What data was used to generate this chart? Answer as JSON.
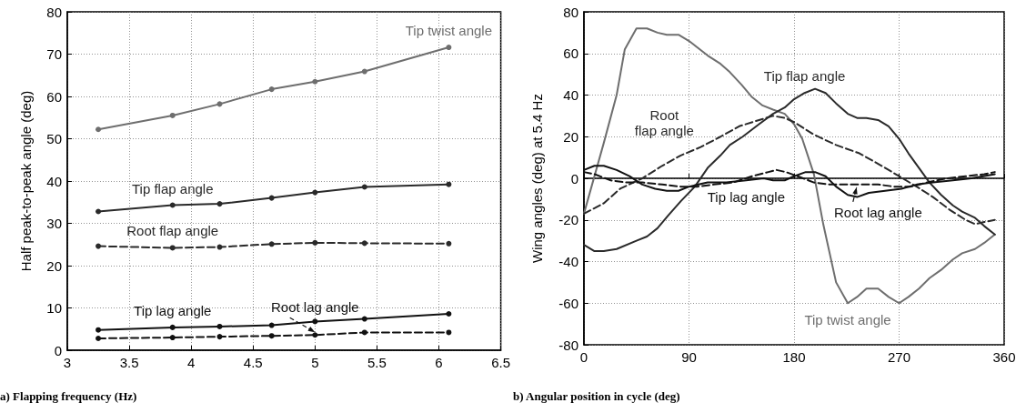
{
  "chart_data": [
    {
      "type": "line",
      "xlabel": "a) Flapping frequency (Hz)",
      "ylabel": "Half peak-to-peak angle (deg)",
      "xlim": [
        3,
        6.5
      ],
      "xticks": [
        3,
        3.5,
        4,
        4.5,
        5,
        5.5,
        6,
        6.5
      ],
      "ylim": [
        0,
        80
      ],
      "yticks": [
        0,
        10,
        20,
        30,
        40,
        50,
        60,
        70,
        80
      ],
      "grid": true,
      "marker": "circle",
      "x": [
        3.25,
        3.85,
        4.23,
        4.65,
        5.0,
        5.4,
        6.08
      ],
      "series": [
        {
          "name": "Tip twist angle",
          "color": "#6e6e6e",
          "line_style": "solid",
          "values": [
            52.2,
            55.5,
            58.2,
            61.7,
            63.5,
            65.9,
            71.6
          ]
        },
        {
          "name": "Tip flap angle",
          "color": "#2a2a2a",
          "line_style": "solid",
          "values": [
            32.8,
            34.3,
            34.6,
            36,
            37.3,
            38.6,
            39.2
          ]
        },
        {
          "name": "Root flap angle",
          "color": "#2a2a2a",
          "line_style": "dashed",
          "values": [
            24.6,
            24.2,
            24.4,
            25.1,
            25.4,
            25.3,
            25.2
          ]
        },
        {
          "name": "Tip lag angle",
          "color": "#111111",
          "line_style": "solid",
          "values": [
            4.8,
            5.4,
            5.6,
            5.9,
            6.8,
            7.4,
            8.6
          ]
        },
        {
          "name": "Root lag angle",
          "color": "#111111",
          "line_style": "dashed",
          "values": [
            2.8,
            3.0,
            3.2,
            3.4,
            3.6,
            4.2,
            4.2
          ]
        }
      ]
    },
    {
      "type": "line",
      "xlabel": "b) Angular position in cycle (deg)",
      "ylabel": "Wing angles (deg) at 5.4 Hz",
      "xlim": [
        0,
        360
      ],
      "xticks": [
        0,
        90,
        180,
        270,
        360
      ],
      "ylim": [
        -80,
        80
      ],
      "yticks": [
        -80,
        -60,
        -40,
        -20,
        0,
        20,
        40,
        60,
        80
      ],
      "grid": true,
      "marker": "none",
      "series": [
        {
          "name": "Tip twist angle",
          "color": "#6e6e6e",
          "line_style": "solid",
          "x": [
            0,
            17,
            28,
            35,
            45,
            54,
            63,
            71,
            81,
            90,
            106,
            117,
            125,
            135,
            144,
            153,
            162,
            172,
            180,
            187,
            197,
            205,
            216,
            226,
            234,
            242,
            252,
            261,
            270,
            278,
            287,
            296,
            306,
            316,
            324,
            335,
            343,
            352
          ],
          "values": [
            -17,
            17,
            40,
            62,
            72,
            72,
            70,
            69,
            69,
            66,
            59,
            55,
            51,
            45,
            39,
            35,
            33,
            31,
            26,
            19,
            2,
            -22,
            -50,
            -60,
            -57,
            -53,
            -53,
            -57,
            -60,
            -57,
            -53,
            -48,
            -44,
            -39,
            -36,
            -34,
            -31,
            -27
          ]
        },
        {
          "name": "Tip flap angle",
          "color": "#2a2a2a",
          "line_style": "solid",
          "x": [
            0,
            9,
            17,
            28,
            45,
            54,
            63,
            72,
            83,
            95,
            106,
            117,
            125,
            136,
            150,
            162,
            172,
            180,
            189,
            198,
            207,
            216,
            226,
            234,
            242,
            252,
            261,
            270,
            278,
            287,
            296,
            306,
            316,
            324,
            335,
            343,
            352
          ],
          "values": [
            -32,
            -35,
            -35,
            -34,
            -30,
            -28,
            -24,
            -18,
            -11,
            -4,
            5,
            11,
            16,
            20,
            26,
            31,
            34,
            38,
            41,
            43,
            41,
            36,
            31,
            29,
            29,
            28,
            25,
            19,
            12,
            5,
            -2,
            -8,
            -13,
            -16,
            -19,
            -23,
            -27
          ]
        },
        {
          "name": "Root\nflap angle",
          "color": "#2a2a2a",
          "line_style": "dashed",
          "x": [
            0,
            17,
            31,
            50,
            67,
            83,
            100,
            117,
            133,
            150,
            162,
            172,
            180,
            197,
            216,
            236,
            255,
            270,
            285,
            299,
            313,
            327,
            335,
            343,
            352
          ],
          "values": [
            -17,
            -12,
            -5,
            0,
            6,
            11,
            15,
            20,
            25,
            28,
            30,
            29,
            27,
            21,
            16,
            12,
            6,
            1,
            -4,
            -9,
            -15,
            -20,
            -22,
            -21,
            -20
          ]
        },
        {
          "name": "Tip lag angle",
          "color": "#111111",
          "line_style": "solid",
          "x": [
            0,
            9,
            17,
            28,
            39,
            50,
            61,
            71,
            81,
            90,
            106,
            122,
            139,
            154,
            162,
            172,
            180,
            190,
            198,
            207,
            216,
            226,
            234,
            244,
            258,
            272,
            285,
            299,
            316,
            332,
            352
          ],
          "values": [
            4,
            6,
            6,
            4,
            1,
            -3,
            -5,
            -6,
            -6,
            -4,
            -2,
            -2,
            -1,
            0,
            -1,
            -1,
            1,
            3,
            3,
            1,
            -4,
            -8,
            -9,
            -7,
            -6,
            -5,
            -3,
            -2,
            -1,
            0,
            2
          ]
        },
        {
          "name": "Root lag angle",
          "color": "#111111",
          "line_style": "dashed",
          "x": [
            0,
            9,
            23,
            36,
            50,
            67,
            83,
            97,
            111,
            128,
            144,
            158,
            165,
            173,
            183,
            197,
            211,
            227,
            238,
            252,
            266,
            280,
            294,
            311,
            327,
            343,
            352
          ],
          "values": [
            3,
            2,
            -1,
            -2,
            -2,
            -3,
            -4,
            -4,
            -3,
            -2,
            1,
            3,
            4,
            3,
            1,
            -2,
            -3,
            -3,
            -3,
            -3,
            -4,
            -4,
            -2,
            0,
            1,
            2,
            3
          ]
        }
      ]
    }
  ]
}
